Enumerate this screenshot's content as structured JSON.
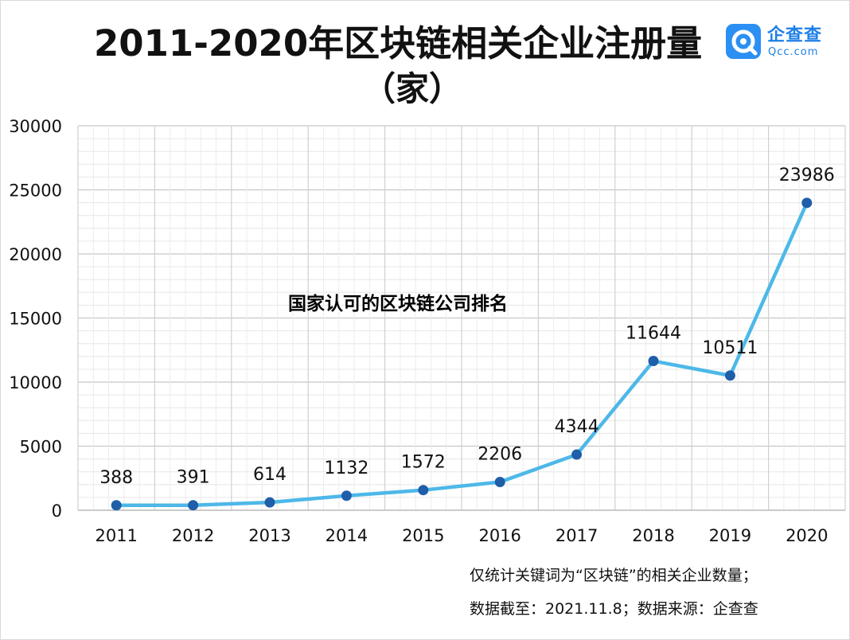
{
  "title_line1": "2011-2020年区块链相关企业注册量",
  "title_line2": "（家）",
  "logo": {
    "name": "企查查",
    "url": "Qcc.com",
    "color": "#2b8ff3"
  },
  "overlay_text": "国家认可的区块链公司排名",
  "notes": [
    "仅统计关键词为“区块链”的相关企业数量；",
    "数据截至：2021.11.8；数据来源：企查查"
  ],
  "chart_data": {
    "type": "line",
    "title": "2011-2020年区块链相关企业注册量（家）",
    "categories": [
      "2011",
      "2012",
      "2013",
      "2014",
      "2015",
      "2016",
      "2017",
      "2018",
      "2019",
      "2020"
    ],
    "values": [
      388,
      391,
      614,
      1132,
      1572,
      2206,
      4344,
      11644,
      10511,
      23986
    ],
    "data_labels": [
      "388",
      "391",
      "614",
      "1132",
      "1572",
      "2206",
      "4344",
      "11644",
      "10511",
      "23986"
    ],
    "ylim": [
      0,
      30000
    ],
    "yticks": [
      "0",
      "5000",
      "10000",
      "15000",
      "20000",
      "25000",
      "30000"
    ],
    "grid": true,
    "line_color": "#4db8e8",
    "marker_color": "#1f5ea8"
  }
}
